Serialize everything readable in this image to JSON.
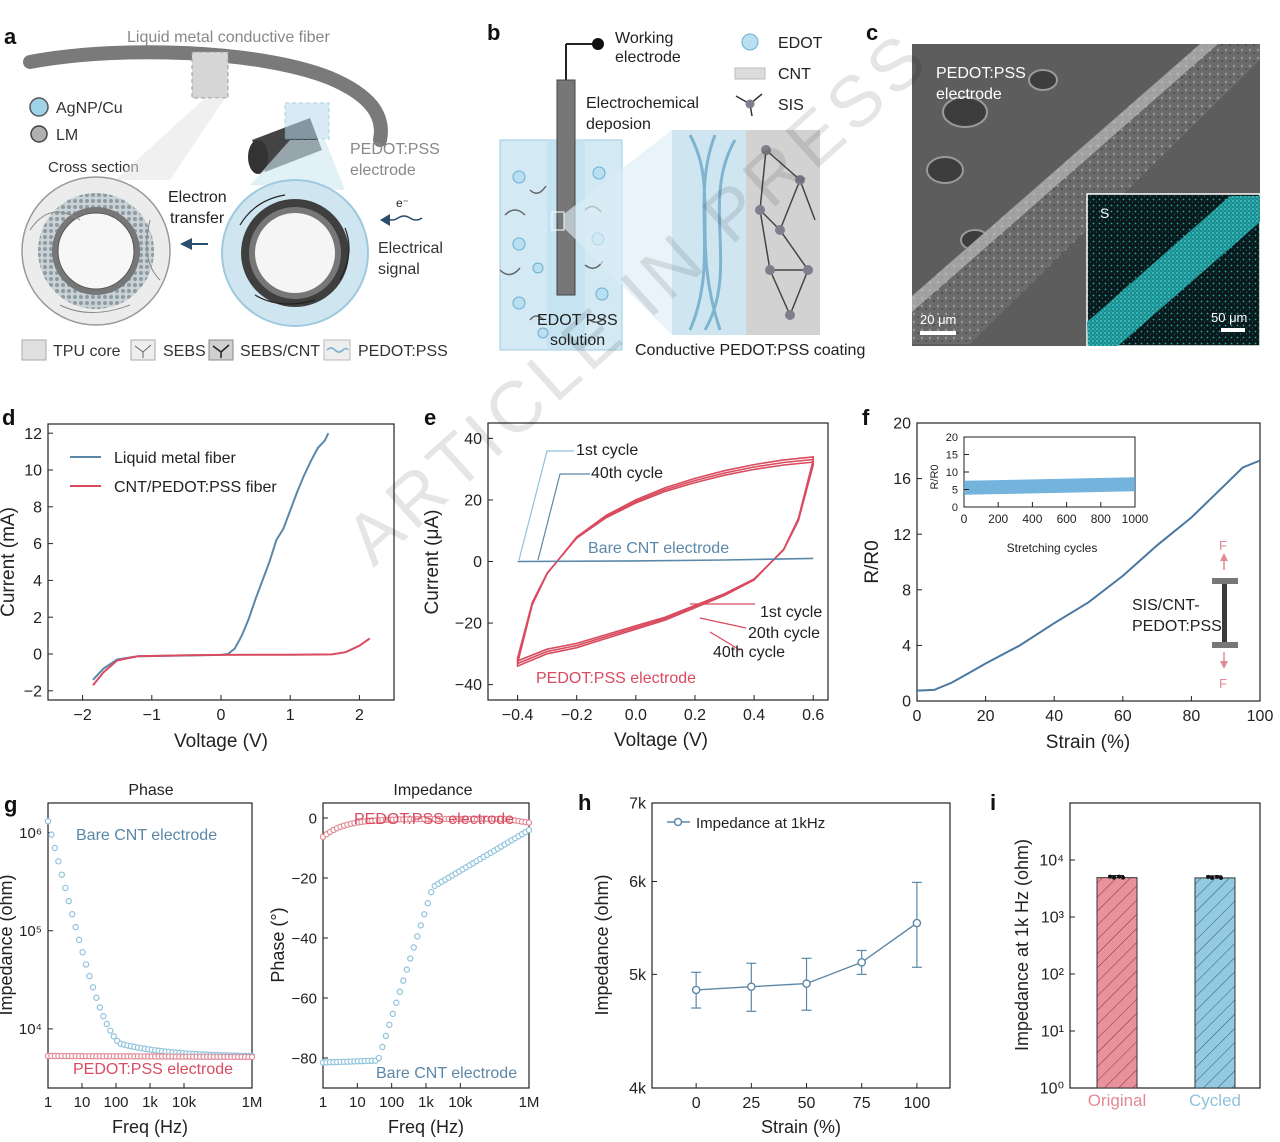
{
  "panels": {
    "a": {
      "letter": "a",
      "fiber_title": "Liquid metal conductive fiber",
      "legend_agnp": "AgNP/Cu",
      "legend_lm": "LM",
      "cross_section": "Cross section",
      "electron_transfer_1": "Electron",
      "electron_transfer_2": "transfer",
      "pedot_label_1": "PEDOT:PSS",
      "pedot_label_2": "electrode",
      "electron_symbol": "e⁻",
      "elec_signal_1": "Electrical",
      "elec_signal_2": "signal",
      "legend_tpu": "TPU core",
      "legend_sebs": "SEBS",
      "legend_sebscnt": "SEBS/CNT",
      "legend_pedot": "PEDOT:PSS"
    },
    "b": {
      "letter": "b",
      "working_1": "Working",
      "working_2": "electrode",
      "ecd_1": "Electrochemical",
      "ecd_2": "deposion",
      "solution_1": "EDOT PSS",
      "solution_2": "solution",
      "legend_edot": "EDOT",
      "legend_cnt": "CNT",
      "legend_sis": "SIS",
      "coating": "Conductive PEDOT:PSS coating"
    },
    "c": {
      "letter": "c",
      "label_1": "PEDOT:PSS",
      "label_2": "electrode",
      "scale_main": "20 μm",
      "inset_label": "S",
      "scale_inset": "50 μm"
    },
    "d": {
      "letter": "d",
      "legend_lm": "Liquid metal fiber",
      "legend_cnt": "CNT/PEDOT:PSS fiber"
    },
    "e": {
      "letter": "e",
      "c1_top": "1st cycle",
      "c40_top": "40th cycle",
      "bare_label": "Bare CNT electrode",
      "c1_bot": "1st cycle",
      "c20_bot": "20th cycle",
      "c40_bot": "40th cycle",
      "pedot_label": "PEDOT:PSS electrode"
    },
    "f": {
      "letter": "f",
      "sample_1": "SIS/CNT-",
      "sample_2": "PEDOT:PSS",
      "force": "F"
    },
    "g": {
      "letter": "g",
      "left_title": "Phase",
      "right_title": "Impedance",
      "bare_label": "Bare CNT electrode",
      "pedot_label": "PEDOT:PSS electrode"
    },
    "h": {
      "letter": "h"
    },
    "i": {
      "letter": "i"
    }
  },
  "watermark": "ARTICLE IN PRESS",
  "colors": {
    "blue": "#5b88a8",
    "red": "#d94b5f",
    "light_blue": "#8fc3dc",
    "pink": "#e28a95"
  },
  "chart_data": [
    {
      "id": "d",
      "type": "line",
      "xlabel": "Voltage (V)",
      "ylabel": "Current (mA)",
      "xlim": [
        -2.5,
        2.5
      ],
      "ylim": [
        -2.5,
        12.5
      ],
      "xticks": [
        -2,
        -1,
        0,
        1,
        2
      ],
      "yticks": [
        -2,
        0,
        2,
        4,
        6,
        8,
        10,
        12
      ],
      "series": [
        {
          "name": "Liquid metal fiber",
          "color": "#5b88a8",
          "points": [
            [
              -1.85,
              -1.4
            ],
            [
              -1.7,
              -0.8
            ],
            [
              -1.5,
              -0.3
            ],
            [
              -1.2,
              -0.12
            ],
            [
              -0.5,
              -0.08
            ],
            [
              0,
              -0.05
            ],
            [
              0.1,
              0.0
            ],
            [
              0.2,
              0.3
            ],
            [
              0.3,
              1.0
            ],
            [
              0.4,
              1.9
            ],
            [
              0.5,
              3.0
            ],
            [
              0.6,
              4.0
            ],
            [
              0.7,
              5.0
            ],
            [
              0.8,
              6.2
            ],
            [
              0.9,
              6.8
            ],
            [
              1.0,
              7.8
            ],
            [
              1.1,
              8.8
            ],
            [
              1.2,
              9.7
            ],
            [
              1.3,
              10.5
            ],
            [
              1.4,
              11.2
            ],
            [
              1.5,
              11.6
            ],
            [
              1.55,
              12.0
            ]
          ]
        },
        {
          "name": "CNT/PEDOT:PSS fiber",
          "color": "#d94b5f",
          "points": [
            [
              -1.85,
              -1.7
            ],
            [
              -1.7,
              -1.0
            ],
            [
              -1.5,
              -0.35
            ],
            [
              -1.2,
              -0.12
            ],
            [
              -0.5,
              -0.07
            ],
            [
              0,
              -0.05
            ],
            [
              1.0,
              -0.04
            ],
            [
              1.6,
              -0.02
            ],
            [
              1.8,
              0.1
            ],
            [
              2.0,
              0.45
            ],
            [
              2.15,
              0.85
            ]
          ]
        }
      ]
    },
    {
      "id": "e",
      "type": "line",
      "xlabel": "Voltage (V)",
      "ylabel": "Current (μA)",
      "xlim": [
        -0.5,
        0.65
      ],
      "ylim": [
        -45,
        45
      ],
      "xticks": [
        -0.4,
        -0.2,
        0.0,
        0.2,
        0.4,
        0.6
      ],
      "yticks": [
        -40,
        -20,
        0,
        20,
        40
      ],
      "series": [
        {
          "name": "Bare CNT electrode",
          "color": "#5b88a8",
          "points": [
            [
              -0.4,
              0.0
            ],
            [
              0.0,
              0.2
            ],
            [
              0.3,
              0.5
            ],
            [
              0.6,
              1.0
            ]
          ]
        },
        {
          "name": "PEDOT:PSS electrode",
          "color": "#d94b5f",
          "upper": [
            [
              -0.4,
              -33
            ],
            [
              -0.35,
              -14
            ],
            [
              -0.3,
              -4
            ],
            [
              -0.2,
              8
            ],
            [
              -0.1,
              15
            ],
            [
              0.0,
              20
            ],
            [
              0.1,
              24
            ],
            [
              0.2,
              27
            ],
            [
              0.3,
              29.5
            ],
            [
              0.4,
              31.5
            ],
            [
              0.5,
              33
            ],
            [
              0.6,
              34
            ]
          ],
          "lower": [
            [
              0.6,
              33
            ],
            [
              0.55,
              14
            ],
            [
              0.5,
              4
            ],
            [
              0.4,
              -6
            ],
            [
              0.3,
              -11
            ],
            [
              0.2,
              -15
            ],
            [
              0.1,
              -19
            ],
            [
              0.0,
              -22
            ],
            [
              -0.1,
              -25
            ],
            [
              -0.2,
              -28
            ],
            [
              -0.3,
              -30
            ],
            [
              -0.4,
              -34
            ]
          ]
        }
      ]
    },
    {
      "id": "f",
      "type": "line",
      "xlabel": "Strain (%)",
      "ylabel": "R/R0",
      "xlim": [
        0,
        100
      ],
      "ylim": [
        0,
        20
      ],
      "xticks": [
        0,
        20,
        40,
        60,
        80,
        100
      ],
      "yticks": [
        0,
        4,
        8,
        12,
        16,
        20
      ],
      "points": [
        [
          0,
          0.75
        ],
        [
          5,
          0.8
        ],
        [
          10,
          1.3
        ],
        [
          15,
          2.0
        ],
        [
          20,
          2.7
        ],
        [
          30,
          4.0
        ],
        [
          40,
          5.6
        ],
        [
          50,
          7.1
        ],
        [
          60,
          9.0
        ],
        [
          70,
          11.2
        ],
        [
          80,
          13.2
        ],
        [
          90,
          15.6
        ],
        [
          95,
          16.8
        ],
        [
          100,
          17.3
        ]
      ],
      "inset": {
        "xlabel": "Stretching cycles",
        "ylabel": "R/R0",
        "xlim": [
          0,
          1000
        ],
        "ylim": [
          0,
          20
        ],
        "xticks": [
          0,
          200,
          400,
          600,
          800,
          1000
        ],
        "yticks": [
          0,
          5,
          10,
          15,
          20
        ],
        "band_lower": [
          [
            0,
            3.5
          ],
          [
            1000,
            4.5
          ]
        ],
        "band_upper": [
          [
            0,
            7.5
          ],
          [
            1000,
            8.5
          ]
        ]
      }
    },
    {
      "id": "g_left",
      "type": "scatter",
      "xlabel": "Freq (Hz)",
      "ylabel": "Impedance (ohm)",
      "title": "Phase",
      "xscale": "log",
      "yscale": "log",
      "xlim": [
        1,
        1000000
      ],
      "ylim": [
        2500,
        2000000
      ],
      "xticks": [
        "1",
        "10",
        "100",
        "1k",
        "10k",
        "1M"
      ],
      "yticks": [
        "10⁴",
        "10⁵",
        "10⁶"
      ],
      "series": [
        {
          "name": "Bare CNT electrode",
          "color": "#8fc3dc",
          "model": "bare_impedance"
        },
        {
          "name": "PEDOT:PSS electrode",
          "color": "#e28a95",
          "model": "pedot_impedance"
        }
      ]
    },
    {
      "id": "g_right",
      "type": "scatter",
      "xlabel": "Freq (Hz)",
      "ylabel": "Phase (°)",
      "title": "Impedance",
      "xscale": "log",
      "xlim": [
        1,
        1000000
      ],
      "ylim": [
        -90,
        5
      ],
      "xticks": [
        "1",
        "10",
        "100",
        "1k",
        "10k",
        "1M"
      ],
      "yticks": [
        0,
        -20,
        -40,
        -60,
        -80
      ],
      "series": [
        {
          "name": "PEDOT:PSS electrode",
          "color": "#e28a95",
          "model": "pedot_phase"
        },
        {
          "name": "Bare CNT electrode",
          "color": "#8fc3dc",
          "model": "bare_phase"
        }
      ]
    },
    {
      "id": "h",
      "type": "line",
      "xlabel": "Strain (%)",
      "ylabel": "Impedance (ohm)",
      "legend": "Impedance at 1kHz",
      "ylim": [
        4000,
        7000
      ],
      "yticks": [
        "4k",
        "5k",
        "6k",
        "7k"
      ],
      "x": [
        0,
        25,
        50,
        75,
        100
      ],
      "y": [
        4850,
        4880,
        4910,
        5120,
        5530
      ],
      "err": [
        170,
        230,
        250,
        120,
        460
      ]
    },
    {
      "id": "i",
      "type": "bar",
      "ylabel": "Impedance at 1k Hz (ohm)",
      "yscale": "log",
      "ylim": [
        1,
        100000
      ],
      "yticks": [
        "10⁰",
        "10¹",
        "10²",
        "10³",
        "10⁴"
      ],
      "categories": [
        "Original",
        "Cycled"
      ],
      "values": [
        4900,
        4850
      ],
      "colors": [
        "#e28a95",
        "#8fc3dc"
      ]
    }
  ]
}
